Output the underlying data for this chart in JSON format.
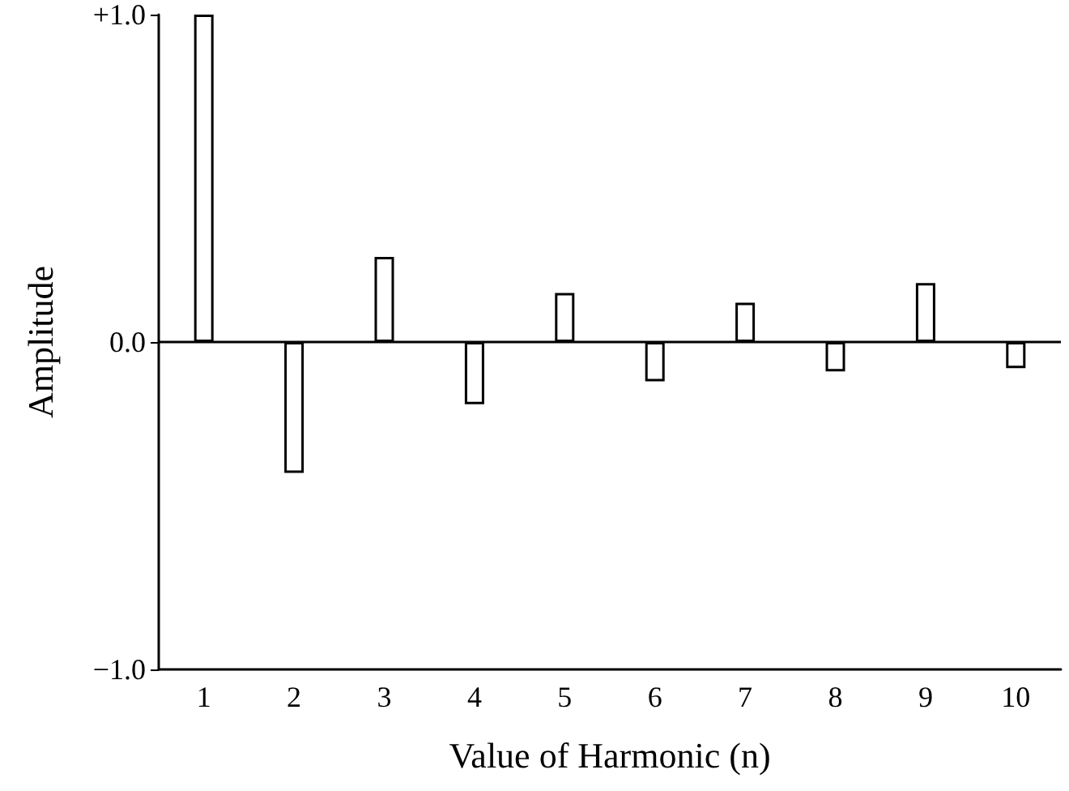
{
  "chart_data": {
    "type": "bar",
    "xlabel": "Value of Harmonic (n)",
    "ylabel": "Amplitude",
    "categories": [
      "1",
      "2",
      "3",
      "4",
      "5",
      "6",
      "7",
      "8",
      "9",
      "10"
    ],
    "values": [
      1.0,
      -0.4,
      0.26,
      -0.19,
      0.15,
      -0.12,
      0.12,
      -0.09,
      0.18,
      -0.08
    ],
    "color": "#ffffff",
    "ylim": [
      -1,
      1
    ],
    "yticks": [
      {
        "value": -1,
        "label": "−1.0"
      },
      {
        "value": 0,
        "label": "0.0"
      },
      {
        "value": 1,
        "label": "+1.0"
      }
    ],
    "ref_lines": [
      {
        "axis": "y",
        "value": 0,
        "color": "#000000"
      }
    ],
    "grid": false
  }
}
